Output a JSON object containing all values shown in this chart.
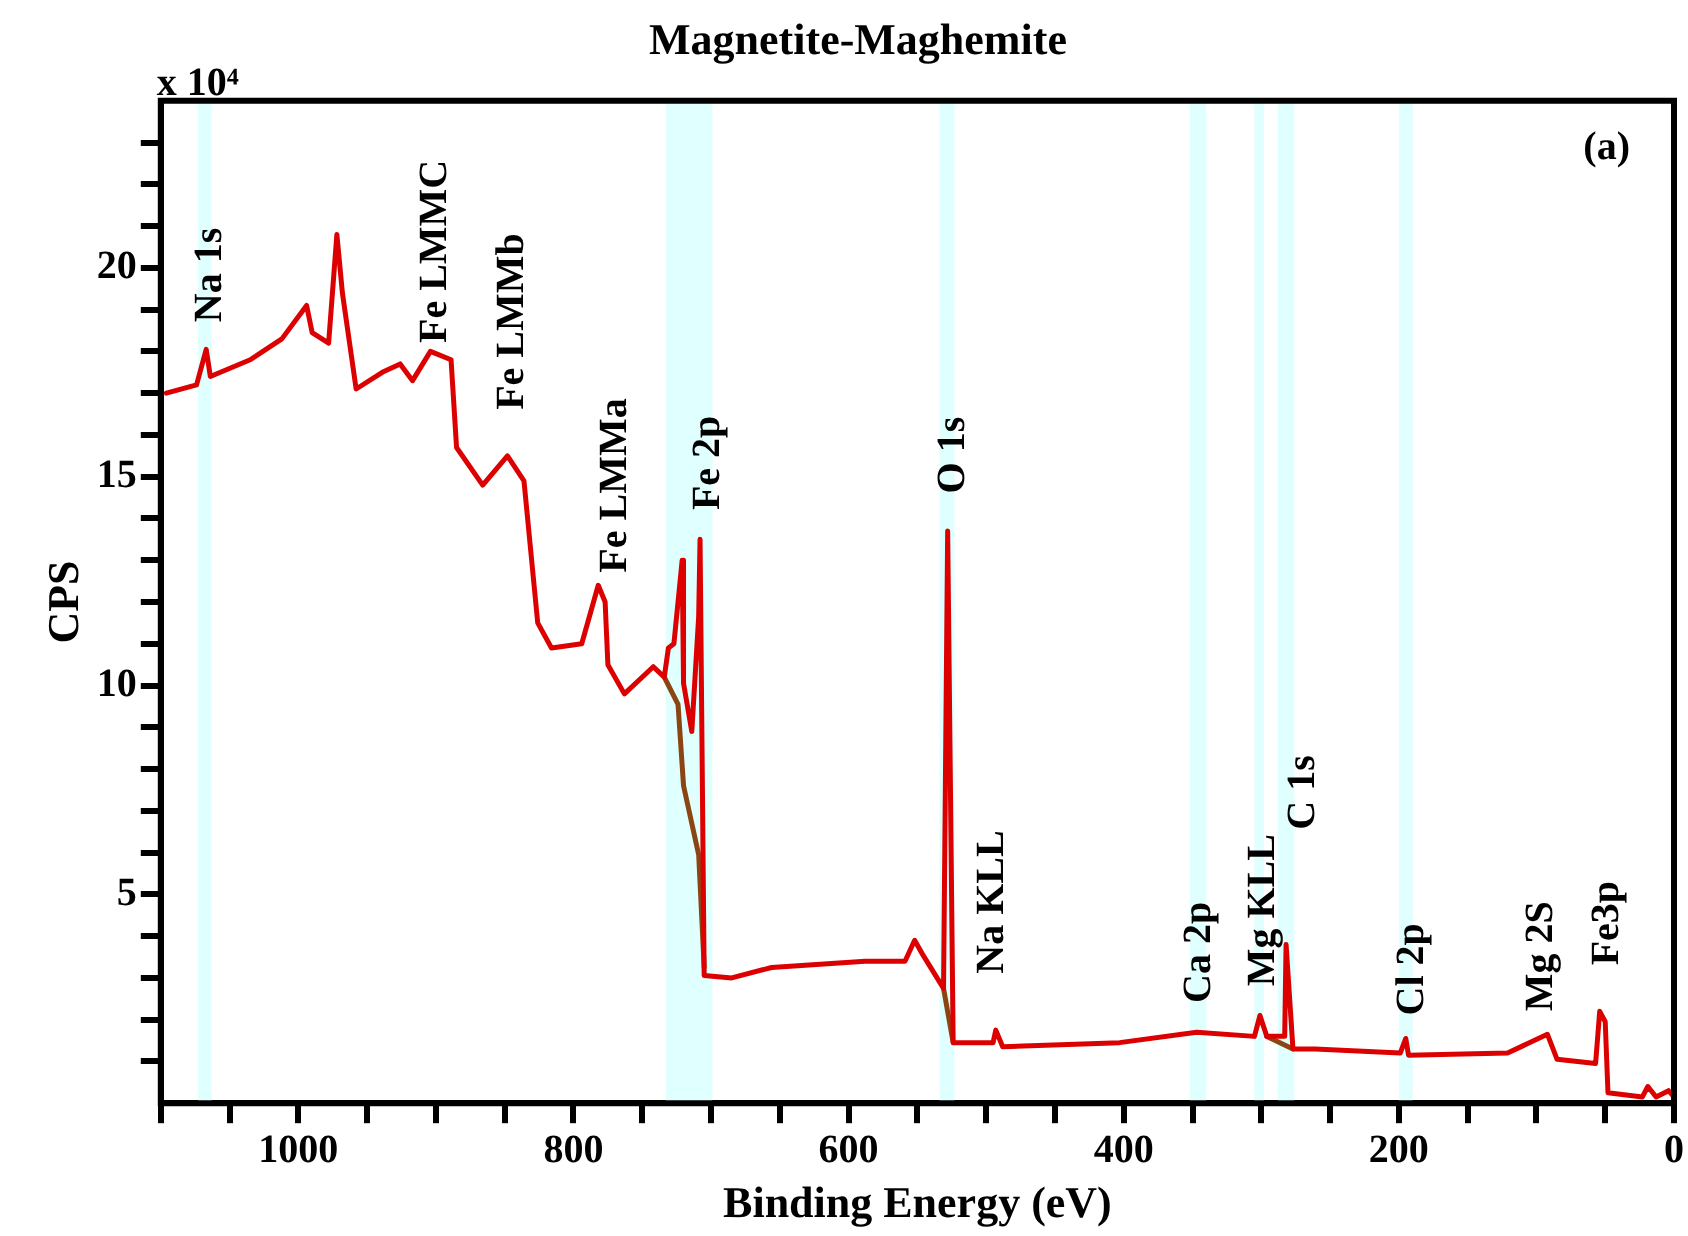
{
  "chart_data": {
    "type": "line",
    "title": "Magnetite-Maghemite",
    "xlabel": "Binding Energy (eV)",
    "ylabel": "CPS",
    "xlim": [
      1100,
      0
    ],
    "xticks": [
      {
        "value": 1100,
        "label": null
      },
      {
        "value": 1050,
        "label": null
      },
      1000,
      {
        "value": 950,
        "label": null
      },
      {
        "value": 900,
        "label": null
      },
      {
        "value": 850,
        "label": null
      },
      800,
      {
        "value": 750,
        "label": null
      },
      {
        "value": 700,
        "label": null
      },
      {
        "value": 650,
        "label": null
      },
      600,
      {
        "value": 550,
        "label": null
      },
      {
        "value": 500,
        "label": null
      },
      {
        "value": 450,
        "label": null
      },
      400,
      {
        "value": 350,
        "label": null
      },
      {
        "value": 300,
        "label": null
      },
      {
        "value": 250,
        "label": null
      },
      200,
      {
        "value": 150,
        "label": null
      },
      {
        "value": 100,
        "label": null
      },
      {
        "value": 50,
        "label": null
      },
      0
    ],
    "ylim": [
      0,
      24
    ],
    "yticks": [
      {
        "value": 1,
        "label": null
      },
      {
        "value": 2,
        "label": null
      },
      {
        "value": 3,
        "label": null
      },
      {
        "value": 4,
        "label": null
      },
      5,
      {
        "value": 6,
        "label": null
      },
      {
        "value": 7,
        "label": null
      },
      {
        "value": 8,
        "label": null
      },
      {
        "value": 9,
        "label": null
      },
      10,
      {
        "value": 11,
        "label": null
      },
      {
        "value": 12,
        "label": null
      },
      {
        "value": 13,
        "label": null
      },
      {
        "value": 14,
        "label": null
      },
      15,
      {
        "value": 16,
        "label": null
      },
      {
        "value": 17,
        "label": null
      },
      {
        "value": 18,
        "label": null
      },
      {
        "value": 19,
        "label": null
      },
      20,
      {
        "value": 21,
        "label": null
      },
      {
        "value": 22,
        "label": null
      },
      {
        "value": 23,
        "label": null
      }
    ],
    "grid": false,
    "legend": false,
    "marker": "none",
    "line_style": "solid",
    "series": [
      {
        "color": "#dd0000",
        "x": [
          1096,
          1074,
          1067,
          1064,
          1035,
          1012,
          994,
          990,
          978,
          972,
          968,
          958,
          939,
          926,
          917,
          904,
          889,
          885,
          866,
          848,
          836,
          826,
          816,
          794,
          782,
          777,
          775,
          763,
          742,
          734,
          731,
          727,
          721,
          720,
          714,
          709,
          708,
          705,
          685,
          656,
          588,
          559,
          552,
          546,
          531,
          528,
          524,
          495,
          493,
          488,
          403,
          347,
          305,
          301,
          296,
          283,
          282,
          277,
          261,
          199,
          195,
          193,
          121,
          92,
          85,
          57,
          54,
          50,
          48,
          23,
          19,
          13,
          4,
          0
        ],
        "values": [
          17.0,
          17.2,
          18.05,
          17.4,
          17.8,
          18.3,
          19.1,
          18.45,
          18.2,
          20.8,
          19.4,
          17.1,
          17.5,
          17.7,
          17.3,
          18.0,
          17.8,
          15.7,
          14.8,
          15.5,
          14.9,
          11.5,
          10.9,
          11.0,
          12.4,
          12.0,
          10.5,
          9.8,
          10.45,
          10.2,
          10.9,
          11.0,
          13.0,
          10.05,
          8.9,
          11.65,
          13.5,
          3.06,
          3.0,
          3.25,
          3.4,
          3.4,
          3.9,
          3.55,
          2.75,
          13.7,
          1.45,
          1.45,
          1.75,
          1.35,
          1.45,
          1.7,
          1.6,
          2.1,
          1.6,
          1.6,
          3.8,
          1.3,
          1.3,
          1.2,
          1.55,
          1.15,
          1.2,
          1.65,
          1.05,
          0.95,
          2.2,
          1.95,
          0.25,
          0.15,
          0.4,
          0.15,
          0.3,
          0.15
        ]
      },
      {
        "color": "#8b4513",
        "x": [
          734,
          724,
          720,
          709,
          705,
          600,
          531,
          524,
          400,
          296,
          277
        ],
        "values": [
          10.2,
          9.55,
          7.6,
          5.95,
          3.25,
          null,
          2.75,
          1.45,
          null,
          1.6,
          1.3
        ]
      }
    ],
    "bands": [
      {
        "axis": "x",
        "from": 1073,
        "to": 1063,
        "color": "#e0ffff"
      },
      {
        "axis": "x",
        "from": 733,
        "to": 699,
        "color": "#e0ffff"
      },
      {
        "axis": "x",
        "from": 534,
        "to": 523,
        "color": "#e0ffff"
      },
      {
        "axis": "x",
        "from": 352,
        "to": 340,
        "color": "#e0ffff"
      },
      {
        "axis": "x",
        "from": 305,
        "to": 298,
        "color": "#e0ffff"
      },
      {
        "axis": "x",
        "from": 288,
        "to": 276,
        "color": "#e0ffff"
      },
      {
        "axis": "x",
        "from": 200,
        "to": 190,
        "color": "#e0ffff"
      }
    ],
    "annotations": [
      "x 10⁴",
      "(a)",
      {
        "text": "Na 1s",
        "x": 1064,
        "y": 18.7
      },
      {
        "text": "Fe LMMC",
        "x": 900,
        "y": 18.2
      },
      "Fe LMMb",
      "Fe LMMa",
      {
        "text": "Fe 2p",
        "x": 702,
        "y": 14.2
      },
      {
        "text": "O 1s",
        "x": 524,
        "y": 14.6
      },
      "Na KLL",
      {
        "text": "Ca 2p",
        "x": 345,
        "y": 2.4
      },
      {
        "text": "Mg KLL",
        "x": 298,
        "y": 2.8
      },
      {
        "text": "C 1s",
        "x": 269,
        "y": 6.55
      },
      {
        "text": "Cl 2p",
        "x": 190,
        "y": 2.1
      },
      "Mg 2S",
      "Fe3p"
    ]
  }
}
